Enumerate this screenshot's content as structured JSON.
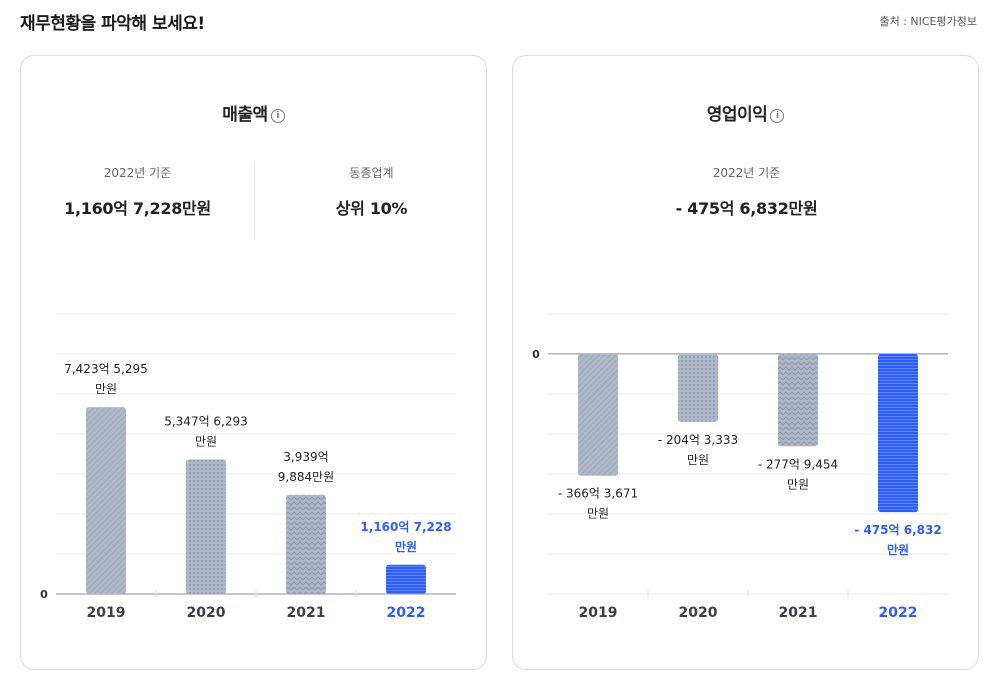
{
  "header": {
    "title": "재무현황을 파악해 보세요!",
    "source": "출처 :  NICE평가정보"
  },
  "revenue": {
    "title": "매출액",
    "info_icon": "i",
    "basis_label": "2022년 기준",
    "basis_value": "1,160억 7,228만원",
    "peer_label": "동종업계",
    "peer_value": "상위 10%"
  },
  "profit": {
    "title": "영업이익",
    "info_icon": "i",
    "basis_label": "2022년 기준",
    "basis_value": "- 475억 6,832만원"
  },
  "colors": {
    "accent": "#2f5ff0",
    "bar_gray": "#aeb8c9",
    "axis": "#8a8f99"
  },
  "chart_data": [
    {
      "type": "bar",
      "title": "매출액",
      "unit": "억원",
      "categories": [
        "2019",
        "2020",
        "2021",
        "2022"
      ],
      "values": [
        7423.5295,
        5347.6293,
        3939.9884,
        1160.7228
      ],
      "labels": [
        [
          "7,423억 5,295",
          "만원"
        ],
        [
          "5,347억 6,293",
          "만원"
        ],
        [
          "3,939억",
          "9,884만원"
        ],
        [
          "1,160억 7,228",
          "만원"
        ]
      ],
      "zero_label": "0",
      "ylim": [
        0,
        11120
      ],
      "grid": true,
      "highlight": "2022"
    },
    {
      "type": "bar",
      "title": "영업이익",
      "unit": "억원",
      "categories": [
        "2019",
        "2020",
        "2021",
        "2022"
      ],
      "values": [
        -366.3671,
        -204.3333,
        -277.9454,
        -475.6832
      ],
      "labels": [
        [
          "- 366억 3,671",
          "만원"
        ],
        [
          "- 204억 3,333",
          "만원"
        ],
        [
          "- 277억 9,454",
          "만원"
        ],
        [
          "- 475억 6,832",
          "만원"
        ]
      ],
      "zero_label": "0",
      "ylim": [
        -722,
        120
      ],
      "grid": true,
      "highlight": "2022"
    }
  ]
}
